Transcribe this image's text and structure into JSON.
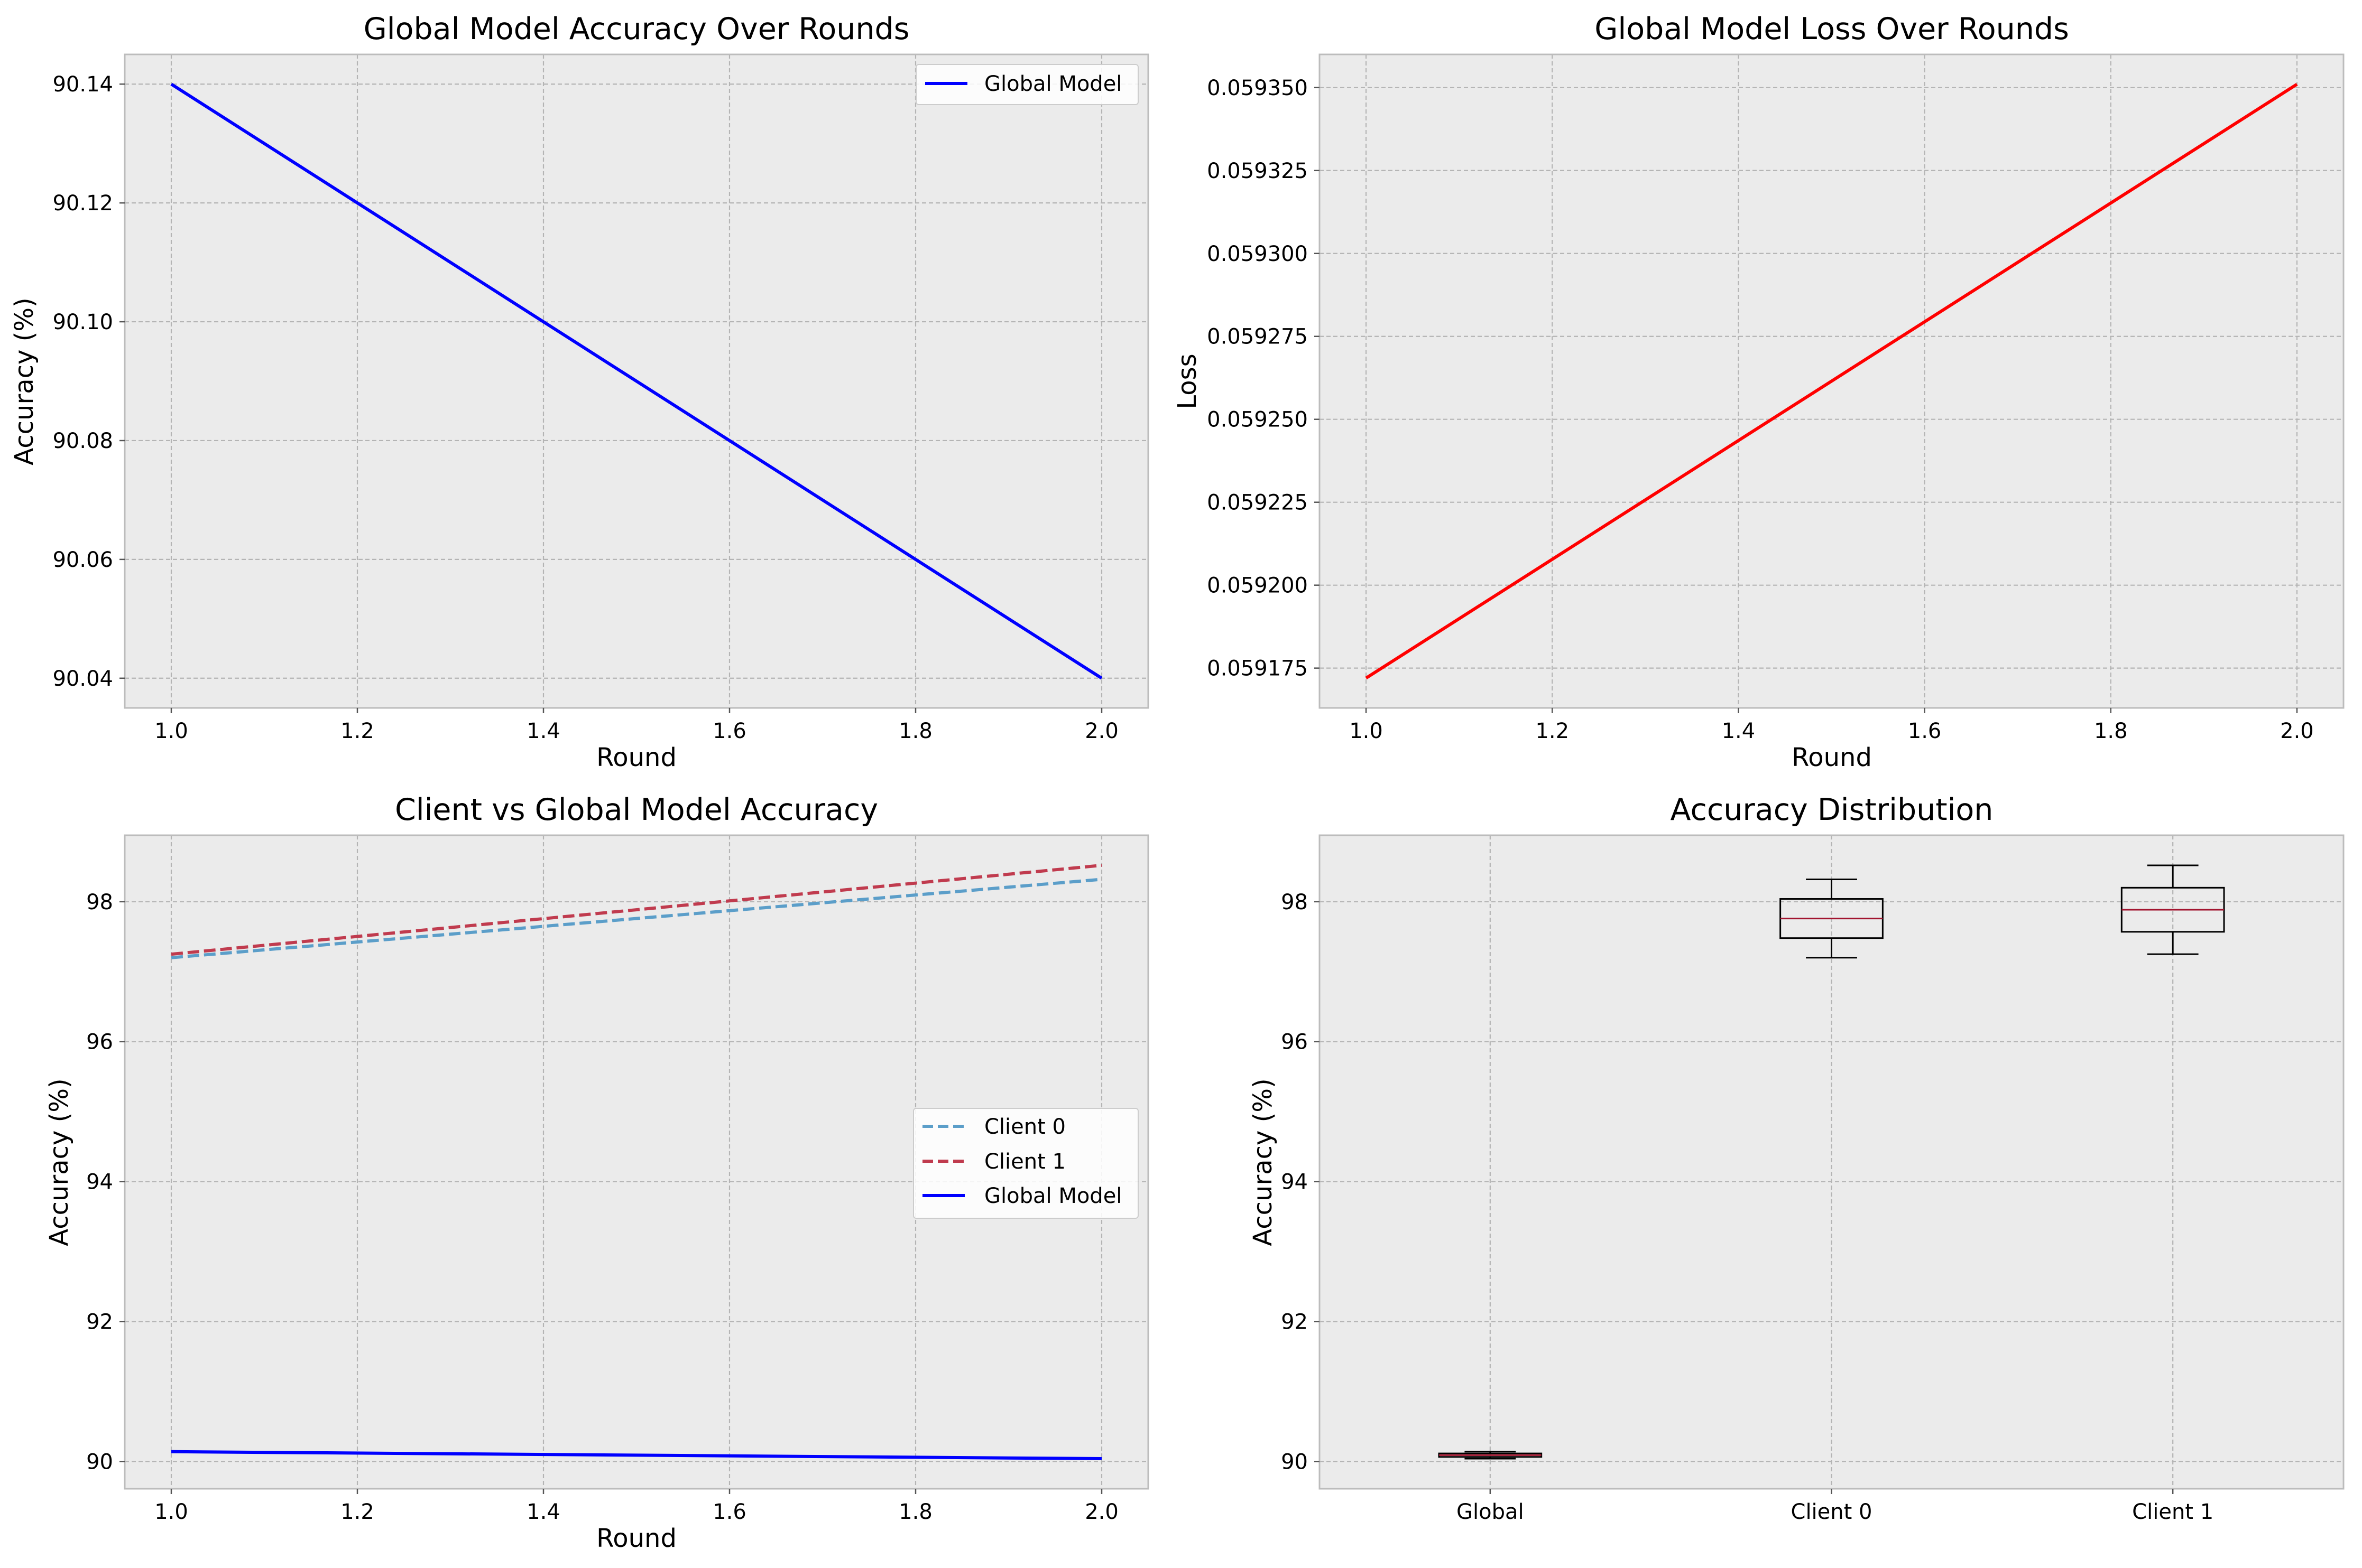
{
  "chart_data": [
    {
      "type": "line",
      "title": "Global Model Accuracy Over Rounds",
      "xlabel": "Round",
      "ylabel": "Accuracy (%)",
      "xlim": [
        0.95,
        2.05
      ],
      "ylim": [
        90.035,
        90.145
      ],
      "xticks": [
        "1.0",
        "1.2",
        "1.4",
        "1.6",
        "1.8",
        "2.0"
      ],
      "yticks": [
        "90.04",
        "90.06",
        "90.08",
        "90.10",
        "90.12",
        "90.14"
      ],
      "grid": true,
      "legend_position": "top-right",
      "series": [
        {
          "name": "Global Model",
          "color": "#0000ff",
          "style": "solid",
          "x": [
            1,
            2
          ],
          "y": [
            90.14,
            90.04
          ]
        }
      ]
    },
    {
      "type": "line",
      "title": "Global Model Loss Over Rounds",
      "xlabel": "Round",
      "ylabel": "Loss",
      "xlim": [
        0.95,
        2.05
      ],
      "ylim": [
        0.059163,
        0.05936
      ],
      "xticks": [
        "1.0",
        "1.2",
        "1.4",
        "1.6",
        "1.8",
        "2.0"
      ],
      "yticks": [
        "0.059175",
        "0.059200",
        "0.059225",
        "0.059250",
        "0.059275",
        "0.059300",
        "0.059325",
        "0.059350"
      ],
      "grid": true,
      "series": [
        {
          "color": "#ff0000",
          "style": "solid",
          "x": [
            1,
            2
          ],
          "y": [
            0.059172,
            0.059351
          ]
        }
      ]
    },
    {
      "type": "line",
      "title": "Client vs Global Model Accuracy",
      "xlabel": "Round",
      "ylabel": "Accuracy (%)",
      "xlim": [
        0.95,
        2.05
      ],
      "ylim": [
        89.61,
        98.95
      ],
      "xticks": [
        "1.0",
        "1.2",
        "1.4",
        "1.6",
        "1.8",
        "2.0"
      ],
      "yticks": [
        "90",
        "92",
        "94",
        "96",
        "98"
      ],
      "grid": true,
      "legend_position": "center-right",
      "series": [
        {
          "name": "Client 0",
          "color": "#5b9ec9",
          "style": "dashed",
          "x": [
            1,
            2
          ],
          "y": [
            97.2,
            98.32
          ]
        },
        {
          "name": "Client 1",
          "color": "#c03b4e",
          "style": "dashed",
          "x": [
            1,
            2
          ],
          "y": [
            97.25,
            98.52
          ]
        },
        {
          "name": "Global Model",
          "color": "#0000ff",
          "style": "solid",
          "x": [
            1,
            2
          ],
          "y": [
            90.14,
            90.04
          ]
        }
      ]
    },
    {
      "type": "box",
      "title": "Accuracy Distribution",
      "xlabel": "",
      "ylabel": "Accuracy (%)",
      "ylim": [
        89.61,
        98.95
      ],
      "yticks": [
        "90",
        "92",
        "94",
        "96",
        "98"
      ],
      "grid": true,
      "categories": [
        "Global",
        "Client 0",
        "Client 1"
      ],
      "boxes": [
        {
          "min": 90.04,
          "q1": 90.065,
          "median": 90.09,
          "q3": 90.115,
          "max": 90.14
        },
        {
          "min": 97.2,
          "q1": 97.48,
          "median": 97.76,
          "q3": 98.04,
          "max": 98.32
        },
        {
          "min": 97.25,
          "q1": 97.57,
          "median": 97.885,
          "q3": 98.2,
          "max": 98.52
        }
      ],
      "median_color": "#a2142f"
    }
  ]
}
